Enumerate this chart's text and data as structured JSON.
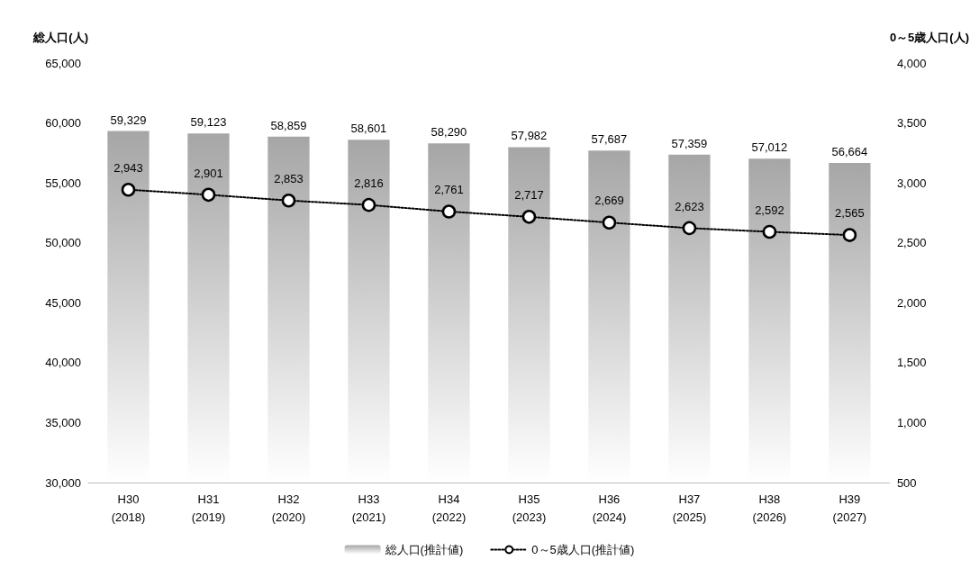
{
  "chart_data": {
    "type": "bar",
    "ylabel": "総人口(人)",
    "y2label": "0～5歳人口(人)",
    "categories": [
      "H30\n(2018)",
      "H31\n(2019)",
      "H32\n(2020)",
      "H33\n(2021)",
      "H34\n(2022)",
      "H35\n(2023)",
      "H36\n(2024)",
      "H37\n(2025)",
      "H38\n(2026)",
      "H39\n(2027)"
    ],
    "series": [
      {
        "name": "総人口(推計値)",
        "color": "#a6a6a6",
        "values": [
          59329,
          59123,
          58859,
          58601,
          58290,
          57982,
          57687,
          57359,
          57012,
          56664
        ],
        "value_labels": [
          "59,329",
          "59,123",
          "58,859",
          "58,601",
          "58,290",
          "57,982",
          "57,687",
          "57,359",
          "57,012",
          "56,664"
        ]
      },
      {
        "name": "0～5歳人口(推計値)",
        "type": "line",
        "axis": "y2",
        "color": "#000000",
        "marker": "circle",
        "line_style": "dotted",
        "values": [
          2943,
          2901,
          2853,
          2816,
          2761,
          2717,
          2669,
          2623,
          2592,
          2565
        ],
        "value_labels": [
          "2,943",
          "2,901",
          "2,853",
          "2,816",
          "2,761",
          "2,717",
          "2,669",
          "2,623",
          "2,592",
          "2,565"
        ]
      }
    ],
    "ylim": [
      30000,
      65000
    ],
    "yticks": [
      {
        "value": 30000,
        "label": "30,000"
      },
      {
        "value": 35000,
        "label": "35,000"
      },
      {
        "value": 40000,
        "label": "40,000"
      },
      {
        "value": 45000,
        "label": "45,000"
      },
      {
        "value": 50000,
        "label": "50,000"
      },
      {
        "value": 55000,
        "label": "55,000"
      },
      {
        "value": 60000,
        "label": "60,000"
      },
      {
        "value": 65000,
        "label": "65,000"
      }
    ],
    "y2lim": [
      500,
      4000
    ],
    "y2ticks": [
      {
        "value": 500,
        "label": "500"
      },
      {
        "value": 1000,
        "label": "1,000"
      },
      {
        "value": 1500,
        "label": "1,500"
      },
      {
        "value": 2000,
        "label": "2,000"
      },
      {
        "value": 2500,
        "label": "2,500"
      },
      {
        "value": 3000,
        "label": "3,000"
      },
      {
        "value": 3500,
        "label": "3,500"
      },
      {
        "value": 4000,
        "label": "4,000"
      }
    ],
    "grid": false,
    "legend": "bottom"
  }
}
